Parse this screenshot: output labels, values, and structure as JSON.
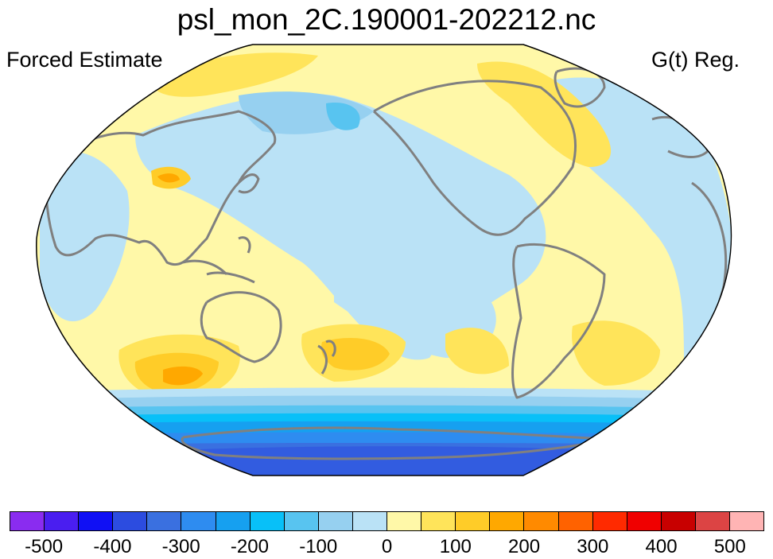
{
  "header": {
    "title": "psl_mon_2C.190001-202212.nc",
    "left_label": "Forced Estimate",
    "right_label": "G(t) Reg."
  },
  "map": {
    "projection": "Robinson (Pacific-centered)",
    "variable": "sea level pressure regression",
    "colors": {
      "land_outline": "#808080",
      "border": "#000000"
    }
  },
  "colorbar": {
    "colors": [
      "#8a2cf0",
      "#4a1ef0",
      "#1010f4",
      "#2c4ce0",
      "#3a70e0",
      "#2e8cf0",
      "#16a0f0",
      "#08c0f8",
      "#58c4f0",
      "#96d0f0",
      "#bae2f6",
      "#fff8a8",
      "#ffe45a",
      "#ffcc28",
      "#ffa800",
      "#ff8a00",
      "#ff6200",
      "#ff2a00",
      "#f00000",
      "#c80000",
      "#dc4444",
      "#ffb4b4"
    ],
    "tick_labels": [
      "-500",
      "-400",
      "-300",
      "-200",
      "-100",
      "0",
      "100",
      "200",
      "300",
      "400",
      "500"
    ]
  }
}
